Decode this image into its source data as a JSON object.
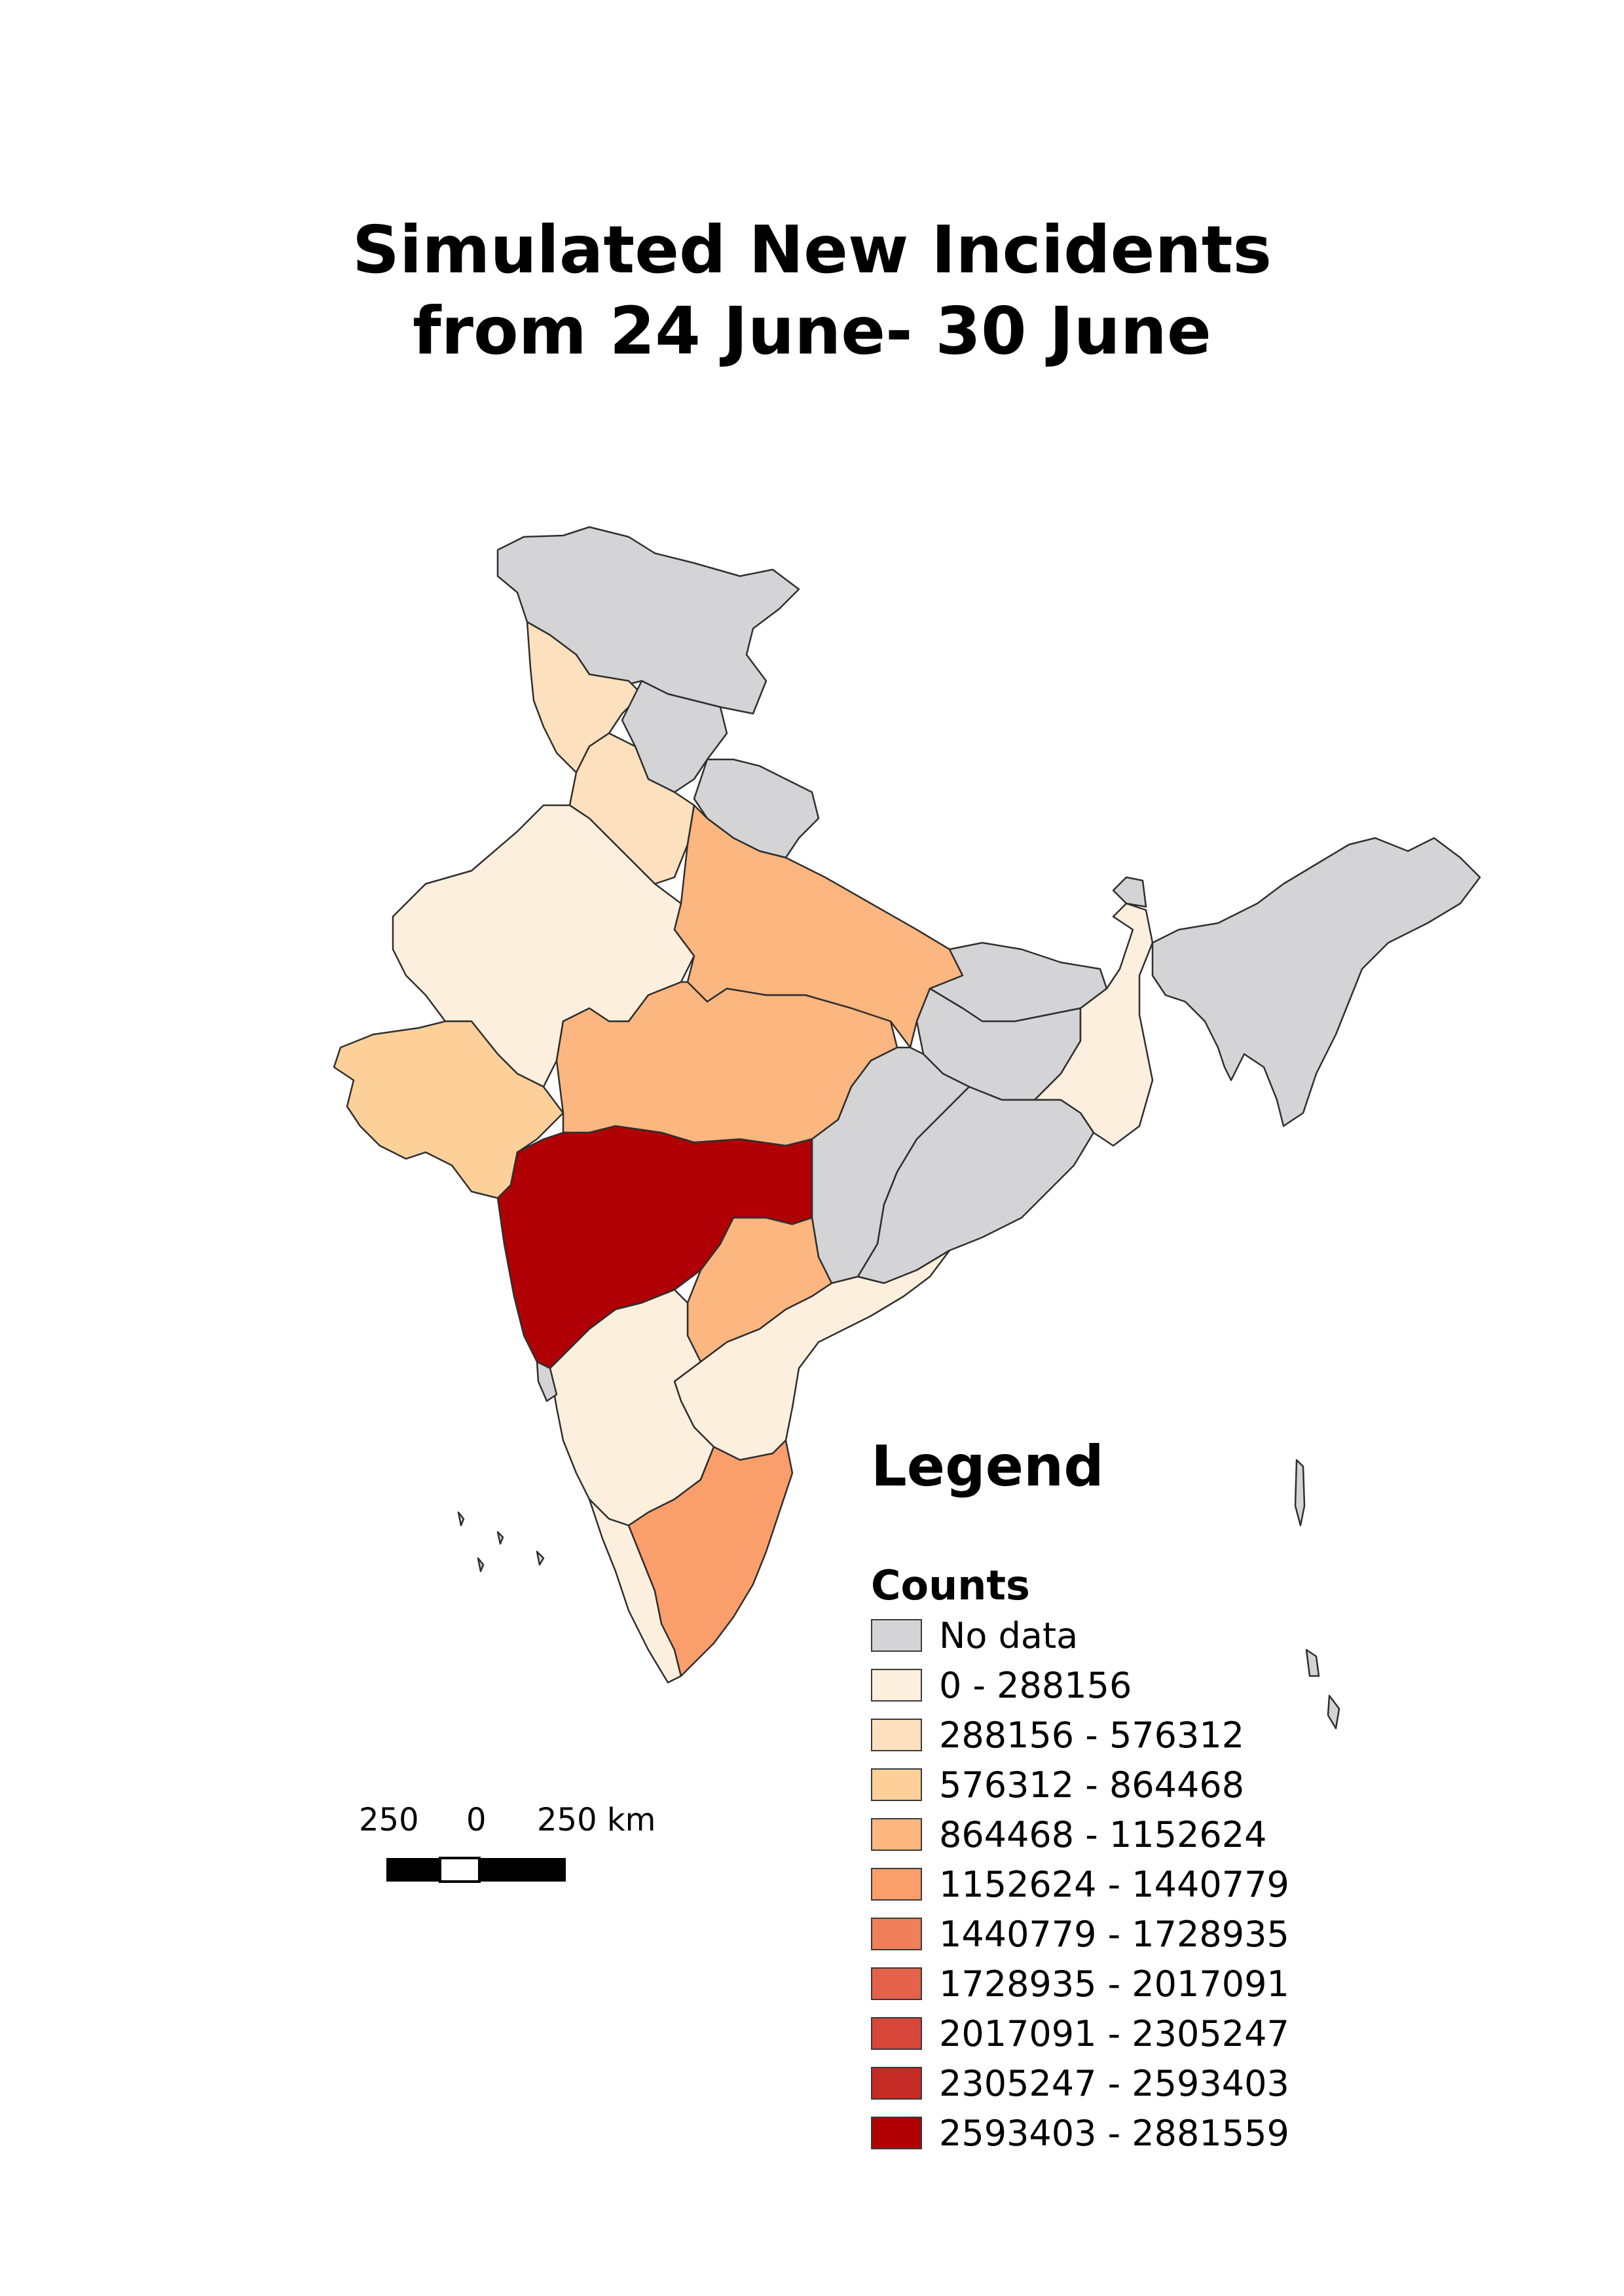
{
  "title": {
    "line1": "Simulated New Incidents",
    "line2": "from 24 June- 30 June"
  },
  "legend": {
    "heading": "Legend",
    "subheading": "Counts",
    "classes": [
      {
        "label": "No data",
        "color": "#d4d4d6"
      },
      {
        "label": "0 - 288156",
        "color": "#fdefdd"
      },
      {
        "label": "288156 - 576312",
        "color": "#fde0bd"
      },
      {
        "label": "576312 - 864468",
        "color": "#fdd09a"
      },
      {
        "label": "864468 - 1152624",
        "color": "#fcb67f"
      },
      {
        "label": "1152624 - 1440779",
        "color": "#fa9e6b"
      },
      {
        "label": "1440779 - 1728935",
        "color": "#f0805a"
      },
      {
        "label": "1728935 - 2017091",
        "color": "#e4624a"
      },
      {
        "label": "2017091 - 2305247",
        "color": "#d8473a"
      },
      {
        "label": "2305247 - 2593403",
        "color": "#c62a24"
      },
      {
        "label": "2593403 - 2881559",
        "color": "#b00005"
      }
    ]
  },
  "scale_bar": {
    "left_label": "250",
    "middle_label": "0",
    "right_label": "250 km"
  },
  "regions": [
    {
      "name": "Jammu and Kashmir",
      "class": 0
    },
    {
      "name": "Punjab",
      "class": 2
    },
    {
      "name": "Himachal Pradesh",
      "class": 0
    },
    {
      "name": "Uttarakhand",
      "class": 0
    },
    {
      "name": "Haryana",
      "class": 2
    },
    {
      "name": "Rajasthan",
      "class": 1
    },
    {
      "name": "Uttar Pradesh",
      "class": 4
    },
    {
      "name": "Gujarat",
      "class": 3
    },
    {
      "name": "Madhya Pradesh",
      "class": 4
    },
    {
      "name": "Bihar",
      "class": 0
    },
    {
      "name": "Jharkhand",
      "class": 0
    },
    {
      "name": "West Bengal",
      "class": 1
    },
    {
      "name": "Chhattisgarh",
      "class": 0
    },
    {
      "name": "Odisha",
      "class": 0
    },
    {
      "name": "Maharashtra",
      "class": 10
    },
    {
      "name": "Telangana",
      "class": 4
    },
    {
      "name": "Andhra Pradesh",
      "class": 1
    },
    {
      "name": "Karnataka",
      "class": 1
    },
    {
      "name": "Goa",
      "class": 0
    },
    {
      "name": "Kerala",
      "class": 1
    },
    {
      "name": "Tamil Nadu",
      "class": 5
    },
    {
      "name": "Sikkim",
      "class": 0
    },
    {
      "name": "Northeast states",
      "class": 0
    }
  ]
}
